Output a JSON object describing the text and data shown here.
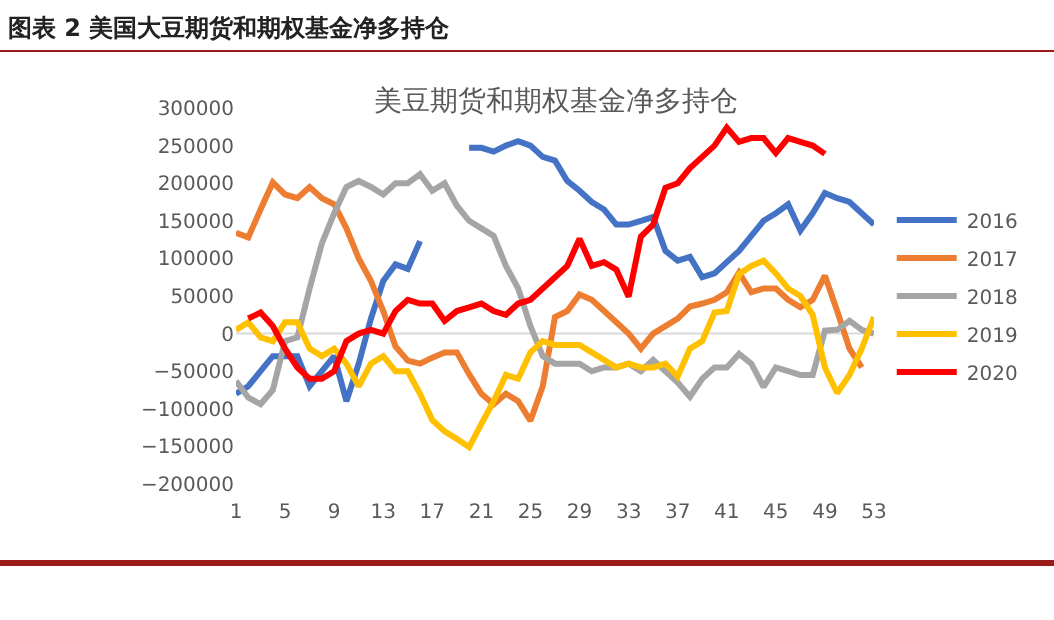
{
  "chart_data": {
    "type": "line",
    "title": "图表 2 美国大豆期货和期权基金净多持仓",
    "subtitle": "美豆期货和期权基金净多持仓",
    "x": [
      1,
      2,
      3,
      4,
      5,
      6,
      7,
      8,
      9,
      10,
      11,
      12,
      13,
      14,
      15,
      16,
      17,
      18,
      19,
      20,
      21,
      22,
      23,
      24,
      25,
      26,
      27,
      28,
      29,
      30,
      31,
      32,
      33,
      34,
      35,
      36,
      37,
      38,
      39,
      40,
      41,
      42,
      43,
      44,
      45,
      46,
      47,
      48,
      49,
      50,
      51,
      52,
      53
    ],
    "series": [
      {
        "name": "2016",
        "color": "#4472c4",
        "values": [
          -80000,
          -70000,
          -50000,
          -30000,
          -30000,
          -30000,
          -70000,
          -50000,
          -30000,
          -90000,
          -40000,
          20000,
          70000,
          92000,
          86000,
          123000,
          null,
          null,
          null,
          247000,
          247000,
          242000,
          250000,
          256000,
          250000,
          235000,
          230000,
          203000,
          190000,
          175000,
          165000,
          145000,
          145000,
          150000,
          155000,
          110000,
          97000,
          102000,
          75000,
          80000,
          95000,
          110000,
          130000,
          150000,
          160000,
          172000,
          137000,
          160000,
          187000,
          180000,
          175000,
          160000,
          145000
        ]
      },
      {
        "name": "2017",
        "color": "#ed7d31",
        "values": [
          134000,
          128000,
          165000,
          201000,
          185000,
          180000,
          195000,
          180000,
          172000,
          140000,
          100000,
          70000,
          30000,
          -17000,
          -36000,
          -40000,
          -32000,
          -25000,
          -25000,
          -54000,
          -80000,
          -94000,
          -80000,
          -90000,
          -116000,
          -70000,
          22000,
          30000,
          52000,
          45000,
          30000,
          15000,
          0,
          -20000,
          0,
          10000,
          20000,
          36000,
          40000,
          45000,
          55000,
          81000,
          55000,
          60000,
          60000,
          45000,
          35000,
          45000,
          77000,
          30000,
          -20000,
          -45000,
          null
        ]
      },
      {
        "name": "2018",
        "color": "#a5a5a5",
        "values": [
          -63000,
          -85000,
          -94000,
          -75000,
          -10000,
          -5000,
          60000,
          120000,
          160000,
          195000,
          203000,
          195000,
          185000,
          200000,
          200000,
          212000,
          190000,
          200000,
          170000,
          150000,
          140000,
          130000,
          90000,
          60000,
          10000,
          -30000,
          -40000,
          -40000,
          -40000,
          -50000,
          -45000,
          -45000,
          -40000,
          -50000,
          -35000,
          -50000,
          -65000,
          -84000,
          -60000,
          -45000,
          -45000,
          -27000,
          -40000,
          -71000,
          -45000,
          -50000,
          -55000,
          -55000,
          4000,
          5000,
          17000,
          5000,
          0
        ]
      },
      {
        "name": "2019",
        "color": "#ffc000",
        "values": [
          5000,
          15000,
          -5000,
          -10000,
          15000,
          15000,
          -20000,
          -30000,
          -20000,
          -40000,
          -70000,
          -40000,
          -30000,
          -50000,
          -50000,
          -80000,
          -115000,
          -130000,
          -140000,
          -151000,
          -120000,
          -90000,
          -55000,
          -60000,
          -25000,
          -10000,
          -15000,
          -15000,
          -15000,
          -25000,
          -35000,
          -45000,
          -40000,
          -45000,
          -45000,
          -40000,
          -57000,
          -20000,
          -10000,
          28000,
          30000,
          79000,
          90000,
          97000,
          80000,
          60000,
          50000,
          25000,
          -45000,
          -79000,
          -55000,
          -20000,
          22000
        ]
      },
      {
        "name": "2020",
        "color": "#ff0000",
        "values": [
          null,
          20000,
          28000,
          10000,
          -20000,
          -45000,
          -60000,
          -60000,
          -50000,
          -10000,
          0,
          5000,
          0,
          30000,
          45000,
          40000,
          40000,
          17000,
          30000,
          35000,
          40000,
          30000,
          25000,
          40000,
          45000,
          60000,
          75000,
          90000,
          126000,
          90000,
          95000,
          85000,
          49000,
          129000,
          145000,
          194000,
          200000,
          220000,
          235000,
          250000,
          274000,
          255000,
          260000,
          260000,
          240000,
          260000,
          255000,
          250000,
          239000,
          null,
          null,
          null,
          null
        ]
      }
    ],
    "xlim": [
      1,
      53
    ],
    "xticks": [
      1,
      5,
      9,
      13,
      17,
      21,
      25,
      29,
      33,
      37,
      41,
      45,
      49,
      53
    ],
    "ylim": [
      -200000,
      300000
    ],
    "yticks": [
      -200000,
      -150000,
      -100000,
      -50000,
      0,
      50000,
      100000,
      150000,
      200000,
      250000,
      300000
    ],
    "grid": false,
    "ref_lines": [
      {
        "axis": "y",
        "value": 0,
        "color": "#d9d9d9"
      }
    ],
    "legend": "right",
    "marker": "none",
    "line_style": "solid"
  }
}
